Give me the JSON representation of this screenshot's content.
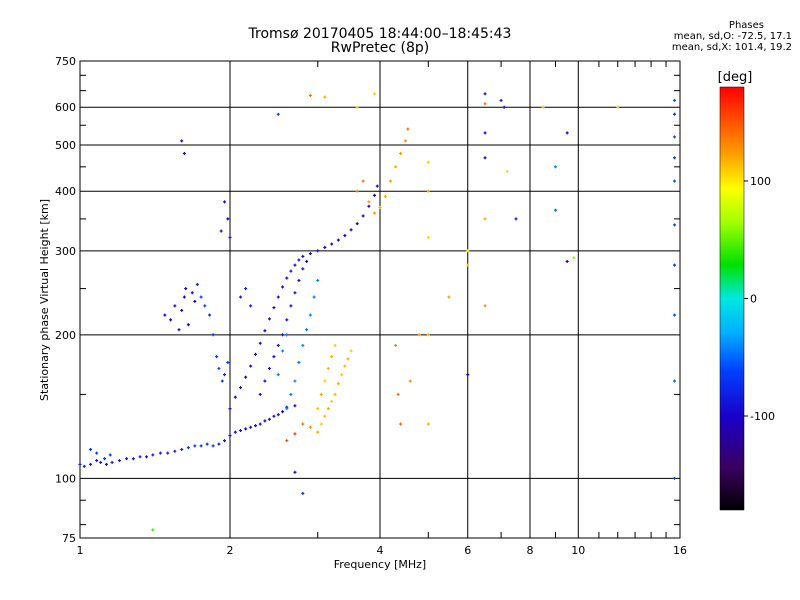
{
  "header": {
    "title_line1": "Tromsø 20170405 18:44:00–18:45:43",
    "title_line2": "RwPretec (8p)"
  },
  "phase_info": {
    "title": "Phases",
    "line_o": "mean, sd,O: -72.5, 17.1",
    "line_x": "mean, sd,X: 101.4, 19.2"
  },
  "colorbar": {
    "unit": "[deg]",
    "min": -180,
    "max": 180,
    "ticks": [
      {
        "value": 100,
        "label": "100"
      },
      {
        "value": 0,
        "label": "0"
      },
      {
        "value": -100,
        "label": "-100"
      }
    ]
  },
  "chart_data": {
    "type": "scatter",
    "title": "Tromsø 20170405 18:44:00–18:45:43",
    "subtitle": "RwPretec (8p)",
    "xlabel": "Frequency [MHz]",
    "ylabel": "Stationary phase Virtual Height [km]",
    "x_scale": "log",
    "y_scale": "log",
    "xlim": [
      1,
      16
    ],
    "ylim": [
      75,
      750
    ],
    "grid": true,
    "x_ticks": [
      {
        "value": 1,
        "label": "1"
      },
      {
        "value": 2,
        "label": "2"
      },
      {
        "value": 4,
        "label": "4"
      },
      {
        "value": 6,
        "label": "6"
      },
      {
        "value": 8,
        "label": "8"
      },
      {
        "value": 10,
        "label": "10"
      },
      {
        "value": 16,
        "label": "16"
      }
    ],
    "y_ticks": [
      {
        "value": 75,
        "label": "75"
      },
      {
        "value": 100,
        "label": "100"
      },
      {
        "value": 200,
        "label": "200"
      },
      {
        "value": 300,
        "label": "300"
      },
      {
        "value": 400,
        "label": "400"
      },
      {
        "value": 500,
        "label": "500"
      },
      {
        "value": 600,
        "label": "600"
      },
      {
        "value": 750,
        "label": "750"
      }
    ],
    "colorbar_range": [
      -180,
      180
    ],
    "series": [
      {
        "points": [
          [
            1.0,
            107,
            -80
          ],
          [
            1.02,
            106,
            -85
          ],
          [
            1.05,
            107,
            -80
          ],
          [
            1.08,
            109,
            -85
          ],
          [
            1.1,
            108,
            -80
          ],
          [
            1.13,
            107,
            -90
          ],
          [
            1.16,
            108,
            -85
          ],
          [
            1.2,
            109,
            -80
          ],
          [
            1.24,
            110,
            -90
          ],
          [
            1.28,
            110,
            -85
          ],
          [
            1.32,
            111,
            -80
          ],
          [
            1.36,
            111,
            -90
          ],
          [
            1.4,
            112,
            -85
          ],
          [
            1.45,
            113,
            -80
          ],
          [
            1.5,
            113,
            -85
          ],
          [
            1.55,
            114,
            -80
          ],
          [
            1.6,
            115,
            -75
          ],
          [
            1.65,
            116,
            -70
          ],
          [
            1.7,
            117,
            -65
          ],
          [
            1.75,
            117,
            -70
          ],
          [
            1.8,
            118,
            -75
          ],
          [
            1.85,
            117,
            -70
          ],
          [
            1.9,
            118,
            -80
          ],
          [
            1.95,
            120,
            -90
          ],
          [
            2.0,
            123,
            -95
          ],
          [
            2.05,
            125,
            -100
          ],
          [
            2.1,
            126,
            -95
          ],
          [
            2.15,
            127,
            -100
          ],
          [
            2.2,
            128,
            -90
          ],
          [
            2.25,
            129,
            -95
          ],
          [
            2.3,
            130,
            -90
          ],
          [
            2.35,
            132,
            -100
          ],
          [
            2.4,
            133,
            -90
          ],
          [
            2.45,
            135,
            -95
          ],
          [
            2.5,
            136,
            -90
          ],
          [
            2.55,
            138,
            -100
          ],
          [
            2.6,
            141,
            -95
          ],
          [
            2.7,
            142,
            -100
          ],
          [
            1.05,
            115,
            -70
          ],
          [
            1.08,
            113,
            -75
          ],
          [
            1.12,
            110,
            -70
          ],
          [
            1.15,
            112,
            -65
          ]
        ]
      },
      {
        "points": [
          [
            2.0,
            140,
            -95
          ],
          [
            2.05,
            148,
            -100
          ],
          [
            2.1,
            155,
            -95
          ],
          [
            2.15,
            163,
            -100
          ],
          [
            2.2,
            172,
            -95
          ],
          [
            2.25,
            182,
            -100
          ],
          [
            2.3,
            192,
            -95
          ],
          [
            2.35,
            204,
            -100
          ],
          [
            2.4,
            216,
            -95
          ],
          [
            2.45,
            228,
            -100
          ],
          [
            2.5,
            240,
            -95
          ],
          [
            2.55,
            252,
            -100
          ],
          [
            2.6,
            263,
            -95
          ],
          [
            2.65,
            272,
            -90
          ],
          [
            2.7,
            280,
            -95
          ],
          [
            2.75,
            287,
            -90
          ],
          [
            2.8,
            292,
            -95
          ],
          [
            2.9,
            296,
            -90
          ],
          [
            3.0,
            300,
            -95
          ],
          [
            3.1,
            305,
            -100
          ],
          [
            3.2,
            310,
            -105
          ],
          [
            3.3,
            316,
            -110
          ],
          [
            3.4,
            323,
            -105
          ],
          [
            3.5,
            332,
            -110
          ],
          [
            3.6,
            342,
            -115
          ],
          [
            3.7,
            355,
            -110
          ],
          [
            3.8,
            372,
            -115
          ],
          [
            3.9,
            392,
            -110
          ],
          [
            3.95,
            410,
            -115
          ],
          [
            2.3,
            150,
            -90
          ],
          [
            2.35,
            160,
            -95
          ],
          [
            2.4,
            170,
            -90
          ],
          [
            2.45,
            180,
            -95
          ],
          [
            2.5,
            190,
            -90
          ],
          [
            2.55,
            200,
            -95
          ],
          [
            2.6,
            215,
            -90
          ],
          [
            2.65,
            230,
            -95
          ],
          [
            2.7,
            245,
            -90
          ],
          [
            2.75,
            260,
            -95
          ],
          [
            2.8,
            275,
            -90
          ],
          [
            2.85,
            285,
            -95
          ]
        ]
      },
      {
        "points": [
          [
            2.6,
            140,
            -40
          ],
          [
            2.65,
            150,
            -45
          ],
          [
            2.7,
            160,
            -40
          ],
          [
            2.75,
            175,
            -45
          ],
          [
            2.8,
            190,
            -40
          ],
          [
            2.85,
            205,
            -45
          ],
          [
            2.9,
            220,
            -40
          ],
          [
            2.95,
            240,
            -45
          ],
          [
            3.0,
            260,
            -40
          ],
          [
            2.5,
            165,
            -45
          ],
          [
            2.55,
            185,
            -40
          ],
          [
            2.6,
            200,
            -45
          ]
        ]
      },
      {
        "points": [
          [
            2.6,
            120,
            150
          ],
          [
            2.7,
            124,
            160
          ],
          [
            2.8,
            130,
            140
          ],
          [
            2.9,
            128,
            130
          ],
          [
            3.0,
            125,
            120
          ],
          [
            3.05,
            130,
            110
          ],
          [
            3.1,
            135,
            115
          ],
          [
            3.15,
            140,
            120
          ],
          [
            3.2,
            145,
            110
          ],
          [
            3.25,
            150,
            115
          ],
          [
            3.3,
            158,
            120
          ],
          [
            3.35,
            165,
            110
          ],
          [
            3.4,
            172,
            115
          ],
          [
            3.45,
            178,
            120
          ],
          [
            3.5,
            185,
            110
          ],
          [
            3.0,
            140,
            115
          ],
          [
            3.05,
            150,
            120
          ],
          [
            3.1,
            160,
            110
          ],
          [
            3.15,
            170,
            115
          ],
          [
            3.2,
            180,
            120
          ],
          [
            3.25,
            190,
            110
          ],
          [
            3.6,
            400,
            135
          ],
          [
            3.7,
            420,
            140
          ],
          [
            3.8,
            380,
            130
          ],
          [
            3.9,
            360,
            125
          ],
          [
            4.0,
            370,
            120
          ],
          [
            4.1,
            390,
            120
          ],
          [
            4.2,
            420,
            125
          ],
          [
            4.3,
            450,
            120
          ],
          [
            4.4,
            480,
            125
          ],
          [
            4.5,
            510,
            130
          ],
          [
            4.55,
            540,
            140
          ]
        ]
      },
      {
        "points": [
          [
            1.48,
            220,
            -100
          ],
          [
            1.52,
            215,
            -105
          ],
          [
            1.55,
            230,
            -95
          ],
          [
            1.6,
            225,
            -100
          ],
          [
            1.62,
            240,
            -105
          ],
          [
            1.65,
            210,
            -100
          ],
          [
            1.68,
            245,
            -95
          ],
          [
            1.7,
            235,
            -100
          ],
          [
            1.58,
            205,
            -95
          ],
          [
            1.63,
            250,
            -100
          ],
          [
            1.72,
            255,
            -80
          ],
          [
            1.75,
            240,
            -70
          ],
          [
            1.78,
            230,
            -60
          ],
          [
            1.82,
            220,
            -75
          ],
          [
            1.85,
            200,
            -70
          ],
          [
            1.88,
            180,
            -65
          ],
          [
            1.9,
            170,
            -60
          ],
          [
            1.93,
            160,
            -70
          ],
          [
            1.95,
            165,
            -75
          ],
          [
            1.98,
            175,
            -65
          ],
          [
            1.95,
            380,
            -95
          ],
          [
            1.98,
            350,
            -100
          ],
          [
            2.0,
            320,
            -95
          ],
          [
            1.92,
            330,
            -90
          ],
          [
            2.1,
            240,
            -85
          ],
          [
            2.15,
            250,
            -80
          ],
          [
            2.2,
            230,
            -85
          ]
        ]
      },
      {
        "points": [
          [
            4.3,
            190,
            135
          ],
          [
            4.35,
            150,
            140
          ],
          [
            4.4,
            130,
            145
          ],
          [
            4.6,
            160,
            130
          ],
          [
            4.8,
            200,
            125
          ],
          [
            5.0,
            130,
            120
          ],
          [
            5.0,
            200,
            115
          ],
          [
            5.0,
            320,
            105
          ],
          [
            5.0,
            400,
            120
          ],
          [
            5.0,
            460,
            110
          ],
          [
            5.5,
            240,
            125
          ],
          [
            6.0,
            165,
            -100
          ],
          [
            6.0,
            280,
            110
          ],
          [
            6.0,
            300,
            95
          ],
          [
            6.5,
            230,
            130
          ],
          [
            6.5,
            350,
            120
          ],
          [
            6.5,
            610,
            140
          ],
          [
            6.5,
            640,
            -95
          ],
          [
            6.5,
            470,
            -110
          ],
          [
            6.5,
            530,
            -105
          ],
          [
            7.0,
            620,
            -80
          ],
          [
            7.1,
            600,
            -90
          ],
          [
            7.2,
            440,
            105
          ],
          [
            7.5,
            350,
            -90
          ],
          [
            8.5,
            600,
            110
          ],
          [
            9.0,
            450,
            -40
          ],
          [
            9.5,
            285,
            -110
          ],
          [
            9.5,
            530,
            -100
          ],
          [
            9.8,
            290,
            60
          ],
          [
            9.0,
            365,
            -50
          ],
          [
            12.0,
            600,
            110
          ],
          [
            15.6,
            100,
            -60
          ],
          [
            15.6,
            160,
            -50
          ],
          [
            15.6,
            220,
            -60
          ],
          [
            15.6,
            280,
            -70
          ],
          [
            15.6,
            340,
            -60
          ],
          [
            15.6,
            420,
            -55
          ],
          [
            15.6,
            470,
            -70
          ],
          [
            15.6,
            520,
            -60
          ],
          [
            15.6,
            580,
            -75
          ],
          [
            15.6,
            620,
            -55
          ],
          [
            1.4,
            78,
            40
          ],
          [
            2.7,
            103,
            -100
          ],
          [
            2.8,
            93,
            -70
          ],
          [
            1.6,
            510,
            -100
          ],
          [
            1.62,
            480,
            -90
          ],
          [
            2.9,
            635,
            140
          ],
          [
            3.1,
            630,
            120
          ],
          [
            2.5,
            580,
            -60
          ],
          [
            3.6,
            600,
            110
          ],
          [
            3.9,
            640,
            110
          ]
        ]
      }
    ]
  }
}
